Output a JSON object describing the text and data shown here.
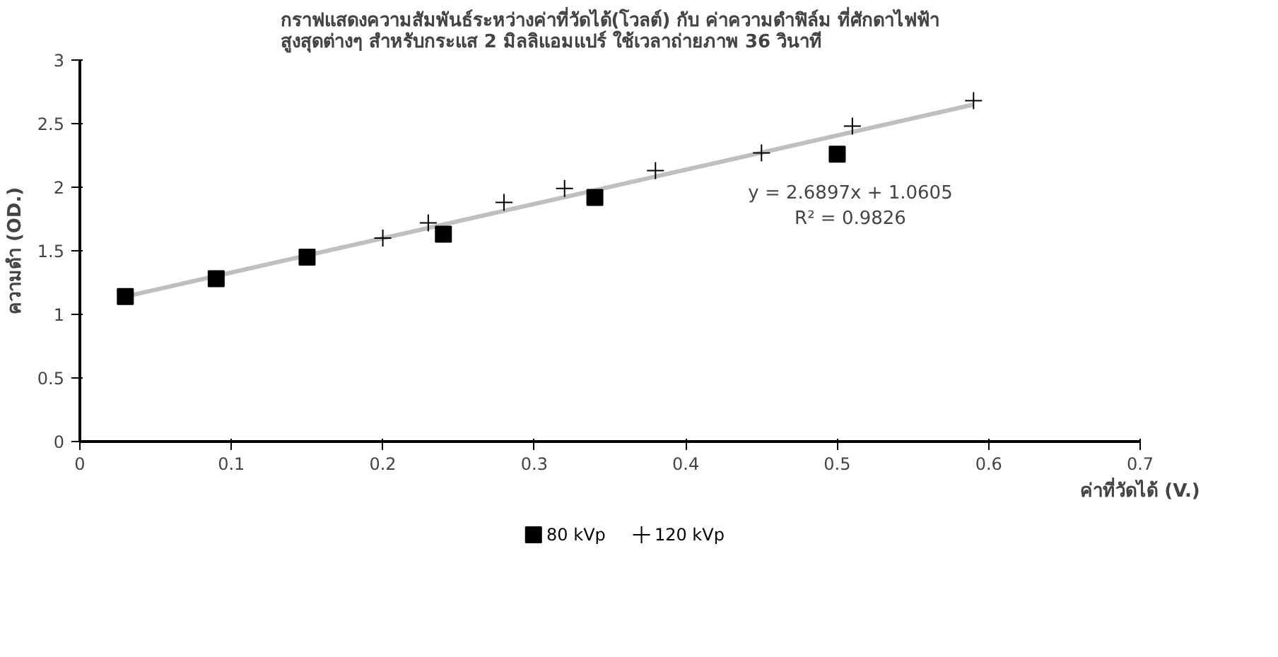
{
  "chart_data": {
    "type": "scatter",
    "title": "กราฟแสดงความสัมพันธ์ระหว่างค่าที่วัดได้(โวลต์) กับ ค่าความดำฟิล์ม ที่ศักดาไฟฟ้า\nสูงสุดต่างๆ สำหรับกระแส 2 มิลลิแอมแปร์ ใช้เวลาถ่ายภาพ 36 วินาที",
    "xlabel": "ค่าที่วัดได้ (V.)",
    "ylabel": "ความดำ (OD.)",
    "series": [
      {
        "name": "80 kVp",
        "color": "#000000",
        "marker": "square",
        "x": [
          0.03,
          0.09,
          0.15,
          0.24,
          0.34,
          0.5
        ],
        "values": [
          1.14,
          1.28,
          1.45,
          1.63,
          1.92,
          2.26
        ]
      },
      {
        "name": "120 kVp",
        "color": "#000000",
        "marker": "cross",
        "x": [
          0.2,
          0.23,
          0.28,
          0.32,
          0.38,
          0.45,
          0.51,
          0.59
        ],
        "values": [
          1.6,
          1.72,
          1.88,
          1.99,
          2.13,
          2.27,
          2.48,
          2.68
        ]
      },
      {
        "type": "line",
        "color": "#bfbfbf",
        "marker": "none",
        "x": [
          0.03,
          0.59
        ],
        "values": [
          1.14,
          2.65
        ]
      }
    ],
    "annotations": [
      "y = 2.6897x + 1.0605\nR² = 0.9826"
    ],
    "xlim": [
      0,
      0.7
    ],
    "xticks": [
      0,
      0.1,
      0.2,
      0.3,
      0.4,
      0.5,
      0.6,
      0.7
    ],
    "ylim": [
      0,
      3
    ],
    "yticks": [
      0,
      0.5,
      1,
      1.5,
      2,
      2.5,
      3
    ],
    "grid": false,
    "legend": "bottom"
  }
}
